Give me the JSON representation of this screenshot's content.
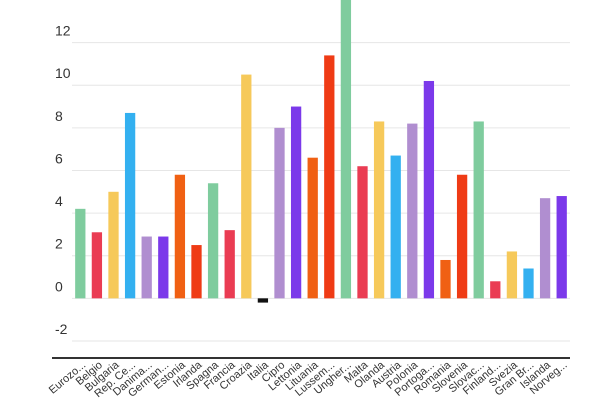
{
  "chart_data": {
    "type": "bar",
    "title": "",
    "xlabel": "",
    "ylabel": "",
    "ylim": [
      -2.8,
      14
    ],
    "yticks": [
      -2,
      0,
      2,
      4,
      6,
      8,
      10,
      12
    ],
    "grid": true,
    "categories": [
      "Eurozo...",
      "Belgio",
      "Bulgaria",
      "Rep. Ce...",
      "Danima...",
      "German...",
      "Estonia",
      "Irlanda",
      "Spagna",
      "Francia",
      "Croazia",
      "Italia",
      "Cipro",
      "Lettonia",
      "Lituania",
      "Lussem...",
      "Ungher...",
      "Malta",
      "Olanda",
      "Austria",
      "Polonia",
      "Portoga...",
      "Romania",
      "Slovenia",
      "Slovac...",
      "Finland...",
      "Svezia",
      "Gran Br...",
      "Islanda",
      "Norveg..."
    ],
    "values": [
      4.2,
      3.1,
      5.0,
      8.7,
      2.9,
      2.9,
      5.8,
      2.5,
      5.4,
      3.2,
      10.5,
      -0.2,
      8.0,
      9.0,
      6.6,
      11.4,
      14.0,
      6.2,
      8.3,
      6.7,
      8.2,
      10.2,
      1.8,
      5.8,
      8.3,
      0.8,
      2.2,
      1.4,
      4.7,
      4.8
    ],
    "colors": [
      "#7fcc9e",
      "#ea3c53",
      "#f6c95a",
      "#33b0f0",
      "#b08ed0",
      "#7b39ea",
      "#f06013",
      "#ef3b15",
      "#7fcc9e",
      "#ea3c53",
      "#f6c95a",
      "#111111",
      "#b08ed0",
      "#7b39ea",
      "#f06013",
      "#ef3b15",
      "#7fcc9e",
      "#ea3c53",
      "#f6c95a",
      "#33b0f0",
      "#b08ed0",
      "#7b39ea",
      "#f06013",
      "#ef3b15",
      "#7fcc9e",
      "#ea3c53",
      "#f6c95a",
      "#33b0f0",
      "#b08ed0",
      "#7b39ea"
    ]
  }
}
